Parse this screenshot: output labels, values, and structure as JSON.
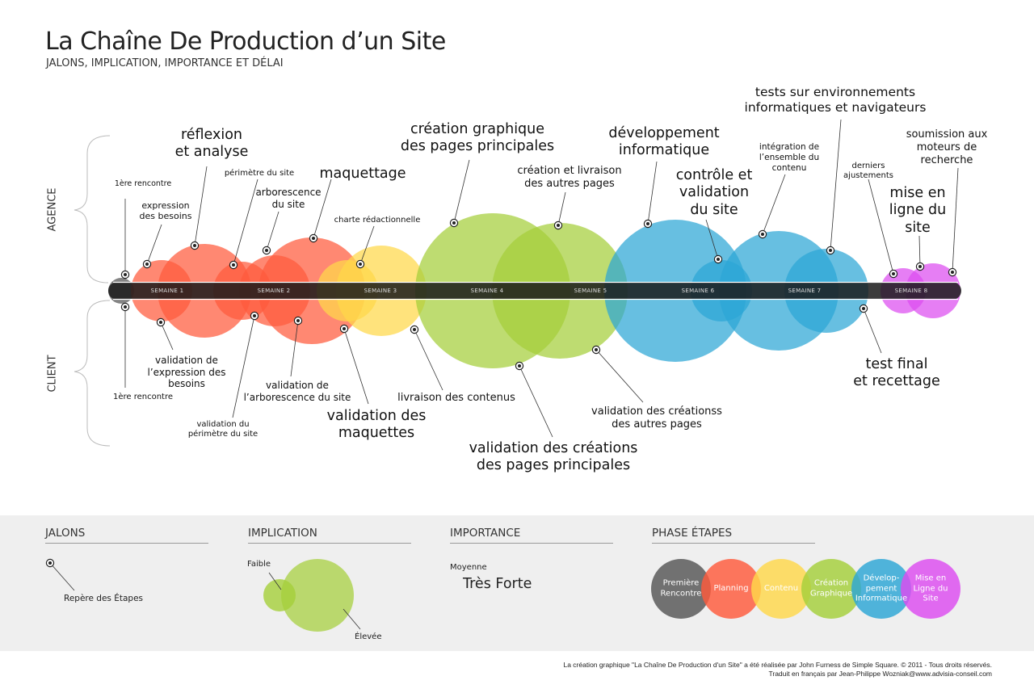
{
  "header": {
    "title": "La Chaîne De Production d’un Site",
    "subtitle": "JALONS, IMPLICATION, IMPORTANCE ET DÉLAI"
  },
  "sides": {
    "top": "AGENCE",
    "bottom": "CLIENT"
  },
  "weeks": [
    "SEMAINE 1",
    "SEMAINE 2",
    "SEMAINE 3",
    "SEMAINE 4",
    "SEMAINE 5",
    "SEMAINE 6",
    "SEMAINE 7",
    "SEMAINE 8"
  ],
  "colors": {
    "start": "#555555",
    "planning": "#ff5a3c",
    "contenu": "#ffd84a",
    "creation": "#a5cf3a",
    "developpement": "#2ca6d6",
    "mise_en_ligne": "#dd4cf0",
    "bar": "#1a1a1a"
  },
  "milestones": {
    "agence": [
      {
        "text": "1ère rencontre"
      },
      {
        "text": "expression\ndes besoins"
      },
      {
        "text": "réflexion\net analyse"
      },
      {
        "text": "périmètre du site"
      },
      {
        "text": "arborescence\ndu site"
      },
      {
        "text": "maquettage"
      },
      {
        "text": "charte rédactionnelle"
      },
      {
        "text": "création graphique\ndes pages principales"
      },
      {
        "text": "création et livraison\ndes autres pages"
      },
      {
        "text": "développement\ninformatique"
      },
      {
        "text": "contrôle et\nvalidation\ndu site"
      },
      {
        "text": "intégration de\nl’ensemble du\ncontenu"
      },
      {
        "text": "tests sur environnements\ninformatiques et navigateurs"
      },
      {
        "text": "derniers\najustements"
      },
      {
        "text": "mise en\nligne du\nsite"
      },
      {
        "text": "soumission aux\nmoteurs de\nrecherche"
      }
    ],
    "client": [
      {
        "text": "1ère rencontre"
      },
      {
        "text": "validation de\nl’expression des\nbesoins"
      },
      {
        "text": "validation du\npérimètre du site"
      },
      {
        "text": "validation de\nl’arborescence du site"
      },
      {
        "text": "validation des\nmaquettes"
      },
      {
        "text": "livraison des contenus"
      },
      {
        "text": "validation des créations\ndes pages principales"
      },
      {
        "text": "validation des créationss\ndes autres pages"
      },
      {
        "text": "test final\net recettage"
      }
    ]
  },
  "legend": {
    "jalons": {
      "heading": "JALONS",
      "item": "Repère des Étapes"
    },
    "implication": {
      "heading": "IMPLICATION",
      "low": "Faible",
      "high": "Élevée"
    },
    "importance": {
      "heading": "IMPORTANCE",
      "medium": "Moyenne",
      "strong": "Très Forte"
    },
    "phases": {
      "heading": "PHASE ÉTAPES",
      "items": [
        {
          "label": "Première\nRencontre",
          "color": "#555555"
        },
        {
          "label": "Planning",
          "color": "#ff5a3c"
        },
        {
          "label": "Contenu",
          "color": "#ffd84a"
        },
        {
          "label": "Création\nGraphique",
          "color": "#a5cf3a"
        },
        {
          "label": "Dévelop-\npement\nInformatique",
          "color": "#2ca6d6"
        },
        {
          "label": "Mise en\nLigne du\nSite",
          "color": "#dd4cf0"
        }
      ]
    }
  },
  "footer": {
    "line1": "La création graphique \"La Chaîne De Production d'un Site\" a été réalisée par John Furness de Simple Square. © 2011 - Tous droits réservés.",
    "line2": "Traduit en français par Jean-Philippe Wozniak@www.advisia-conseil.com"
  }
}
